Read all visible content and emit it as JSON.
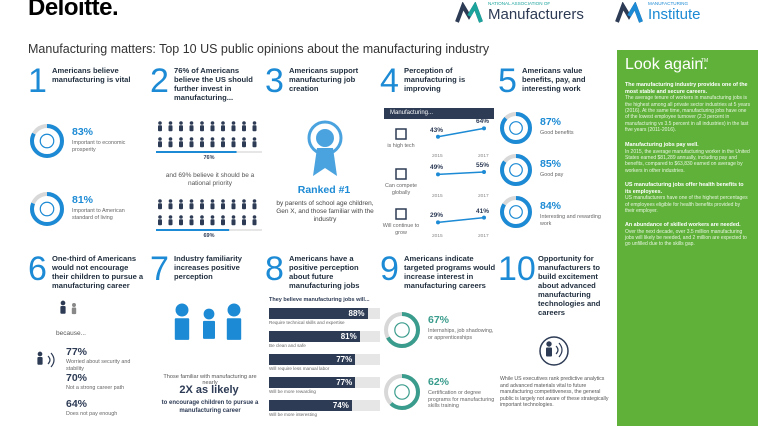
{
  "header": {
    "logo": "Deloitte.",
    "partners": [
      {
        "small": "NATIONAL ASSOCIATION OF",
        "large": "Manufacturers"
      },
      {
        "small": "MANUFACTURING",
        "large": "Institute"
      }
    ]
  },
  "title": "Manufacturing matters: Top 10 US public opinions about the manufacturing industry",
  "cards": [
    {
      "number": "1",
      "heading": "Americans believe manufacturing is vital",
      "stats": [
        {
          "value": 83,
          "label": "83%",
          "text": "Important to economic prosperity"
        },
        {
          "value": 81,
          "label": "81%",
          "text": "Important to American standard of living"
        }
      ]
    },
    {
      "number": "2",
      "heading": "76% of Americans believe the US should further invest in manufacturing...",
      "middle": "and 69% believe it should be a national priority",
      "stats": [
        {
          "value": 76,
          "label": "76%"
        },
        {
          "value": 69,
          "label": "69%"
        }
      ]
    },
    {
      "number": "3",
      "heading": "Americans support manufacturing job creation",
      "highlight": "Ranked #1",
      "text": "by parents of school age children, Gen X, and those familiar with the industry"
    },
    {
      "number": "4",
      "heading": "Perception of manufacturing is improving",
      "subheading": "Manufacturing...",
      "years": [
        "2015",
        "2017"
      ],
      "items": [
        {
          "text": "is high tech",
          "values": [
            43,
            64
          ],
          "value_labels": [
            "43%",
            "64%"
          ]
        },
        {
          "text": "Can compete globally",
          "values": [
            49,
            55
          ],
          "value_labels": [
            "49%",
            "55%"
          ]
        },
        {
          "text": "Will continue to grow",
          "values": [
            29,
            41
          ],
          "value_labels": [
            "29%",
            "41%"
          ]
        }
      ]
    },
    {
      "number": "5",
      "heading": "Americans value benefits, pay, and interesting work",
      "stats": [
        {
          "value": 87,
          "label": "87%",
          "text": "Good benefits"
        },
        {
          "value": 85,
          "label": "85%",
          "text": "Good pay"
        },
        {
          "value": 84,
          "label": "84%",
          "text": "Interesting and rewarding work"
        }
      ]
    },
    {
      "number": "6",
      "heading": "One-third of Americans would not encourage their children to pursue a manufacturing career",
      "subheading": "because...",
      "stats": [
        {
          "value": 77,
          "label": "77%",
          "text": "Worried about security and stability"
        },
        {
          "value": 70,
          "label": "70%",
          "text": "Not a strong career path"
        },
        {
          "value": 64,
          "label": "64%",
          "text": "Does not pay enough"
        }
      ]
    },
    {
      "number": "7",
      "heading": "Industry familiarity increases positive perception",
      "text": "Those familiar with manufacturing are nearly",
      "highlight": "2X as likely",
      "text2": "to encourage children to pursue a manufacturing career"
    },
    {
      "number": "8",
      "heading": "Americans have a positive perception about future manufacturing jobs",
      "subheading": "They believe manufacturing jobs will...",
      "stats": [
        {
          "value": 88,
          "label": "88%",
          "text": "Require technical skills and expertise"
        },
        {
          "value": 81,
          "label": "81%",
          "text": "Be clean and safe"
        },
        {
          "value": 77,
          "label": "77%",
          "text": "Will require less manual labor"
        },
        {
          "value": 77,
          "label": "77%",
          "text": "Will be more rewarding"
        },
        {
          "value": 74,
          "label": "74%",
          "text": "Will be more interesting"
        }
      ]
    },
    {
      "number": "9",
      "heading": "Americans indicate targeted programs would increase interest in manufacturing careers",
      "stats": [
        {
          "value": 67,
          "label": "67%",
          "text": "Internships, job shadowing, or apprenticeships"
        },
        {
          "value": 62,
          "label": "62%",
          "text": "Certification or degree programs for manufacturing skills training"
        }
      ]
    },
    {
      "number": "10",
      "heading": "Opportunity for manufacturers to build excitement about advanced manufacturing technologies and careers",
      "note": "While US executives rank predictive analytics and advanced materials vital to future manufacturing competitiveness, the general public is largely not aware of these strategically important technologies."
    }
  ],
  "sidebar": {
    "title": "Look again.",
    "trademark": "TM",
    "paragraphs": [
      {
        "lead": "The manufacturing industry provides one of the most stable and secure careers.",
        "text": "The average tenure of workers in manufacturing jobs is the highest among all private sector industries at 5 years (2016). At the same time, manufacturing jobs have one of the lowest employee turnover (2.3 percent in manufacturing vs 3.5 percent in all industries) in the last five years (2011-2016)."
      },
      {
        "lead": "Manufacturing jobs pay well.",
        "text": "In 2015, the average manufacturing worker in the United States earned $81,289 annually, including pay and benefits, compared to $63,830 earned on average by workers in other industries."
      },
      {
        "lead": "US manufacturing jobs offer health benefits to its employees.",
        "text": "US manufacturers have one of the highest percentages of employees eligible for health benefits provided by their employer."
      },
      {
        "lead": "An abundance of skilled workers are needed.",
        "text": "Over the next decade, over 3.5 million manufacturing jobs will likely be needed, and 2 million are expected to go unfilled due to the skills gap."
      }
    ]
  }
}
